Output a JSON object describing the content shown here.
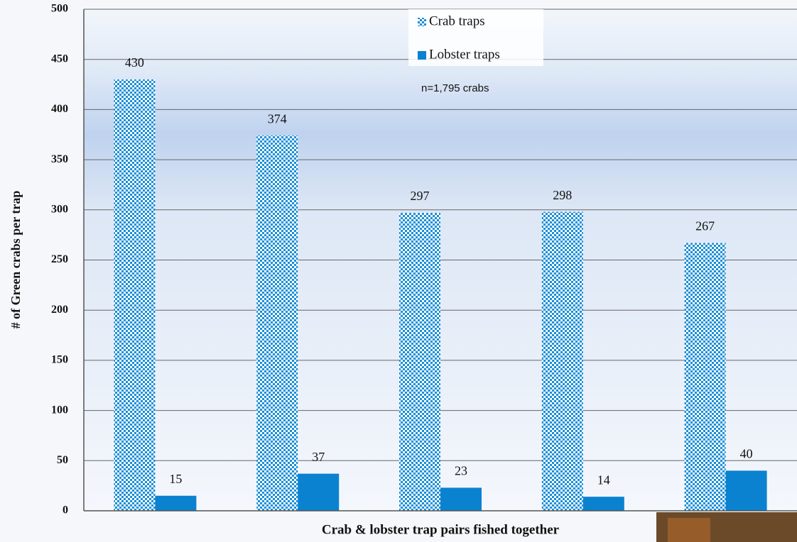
{
  "chart_data": {
    "type": "bar",
    "x_label": "Crab & lobster trap pairs fished together",
    "y_label": "# of Green crabs per trap",
    "annotation": "n=1,795 crabs",
    "categories": [
      null,
      null,
      null,
      null,
      null
    ],
    "series": [
      {
        "name": "Crab traps",
        "color": "#1a8fd8",
        "pattern": "checker",
        "values": [
          430,
          374,
          297,
          298,
          267
        ]
      },
      {
        "name": "Lobster traps",
        "color": "#0a82d0",
        "values": [
          15,
          37,
          23,
          14,
          40
        ]
      }
    ],
    "ylim": [
      0,
      500
    ],
    "yticks": [
      0,
      50,
      100,
      150,
      200,
      250,
      300,
      350,
      400,
      450,
      500
    ],
    "grid": true,
    "legend": "top"
  }
}
